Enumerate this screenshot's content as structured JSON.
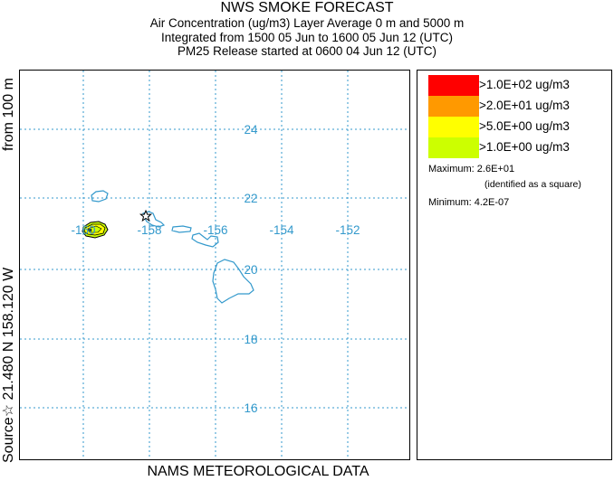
{
  "header": {
    "title": "NWS SMOKE FORECAST",
    "line2": "Air Concentration (ug/m3) Layer Average    0 m and  5000 m",
    "line3": "Integrated from 1500 05 Jun to 1600 05 Jun 12 (UTC)",
    "line4": "PM25 Release started at 0600 04 Jun 12 (UTC)"
  },
  "side_label": {
    "source": "Source☆ 21.480 N 158.120 W",
    "height": "from  100 m"
  },
  "footer": "NAMS METEOROLOGICAL DATA",
  "map": {
    "lon_labels": [
      "-160",
      "-158",
      "-156",
      "-154",
      "-152"
    ],
    "lat_labels": [
      "24",
      "22",
      "20",
      "18",
      "16"
    ],
    "source_marker": "star-icon",
    "colors": {
      "coastline": "#3399cc",
      "grid": "#3399cc",
      "plume_outer": "#ccff00",
      "plume_inner": "#ffff00",
      "plume_contour": "#000000"
    }
  },
  "legend": {
    "levels": [
      {
        "label": ">1.0E+02 ug/m3",
        "color": "#ff0000"
      },
      {
        "label": ">2.0E+01 ug/m3",
        "color": "#ff9900"
      },
      {
        "label": ">5.0E+00 ug/m3",
        "color": "#ffff00"
      },
      {
        "label": ">1.0E+00 ug/m3",
        "color": "#ccff00"
      }
    ],
    "maximum": "Maximum: 2.6E+01",
    "identified": "(identified as a square)",
    "minimum": "Minimum: 4.2E-07"
  }
}
